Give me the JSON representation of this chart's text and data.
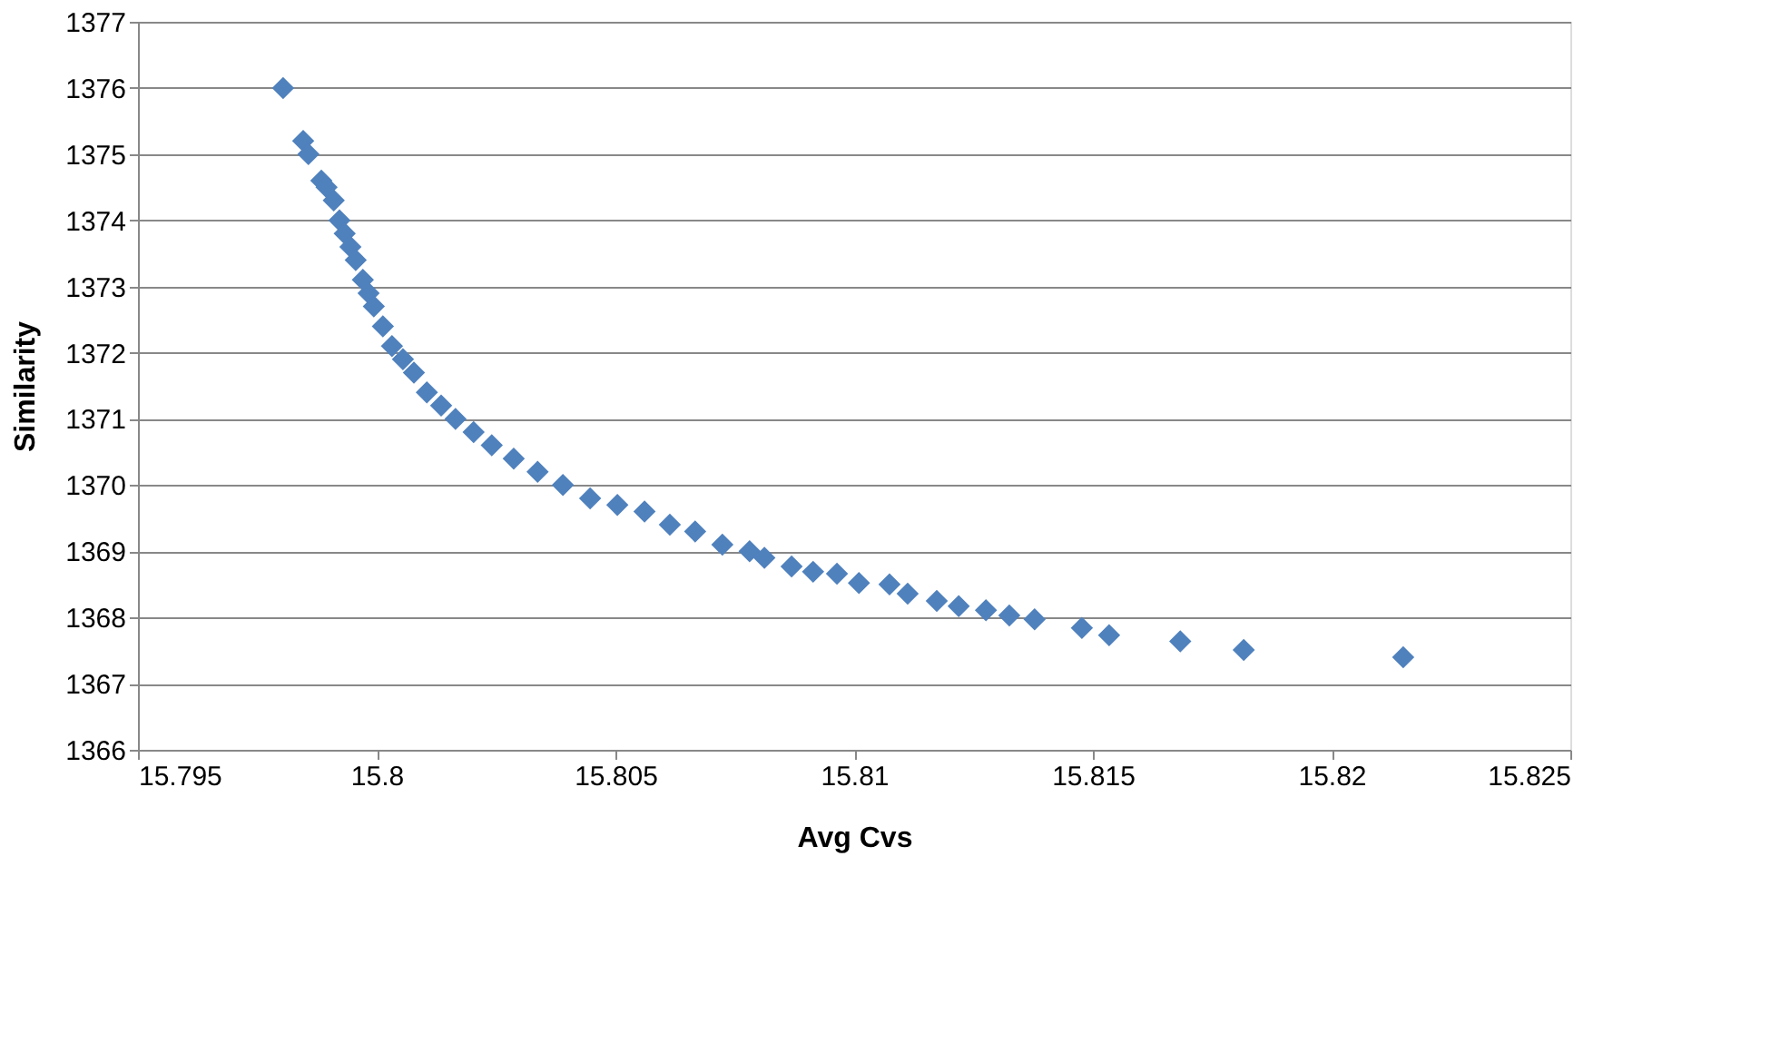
{
  "chart_data": {
    "type": "scatter",
    "xlabel": "Avg Cvs",
    "ylabel": "Similarity",
    "marker": "diamond",
    "grid": "y",
    "legend": false,
    "xlim": [
      15.795,
      15.825
    ],
    "xticks": [
      15.795,
      15.8,
      15.805,
      15.81,
      15.815,
      15.82,
      15.825
    ],
    "ylim": [
      1366,
      1377
    ],
    "yticks": [
      1366,
      1367,
      1368,
      1369,
      1370,
      1371,
      1372,
      1373,
      1374,
      1375,
      1376,
      1377
    ],
    "series": [
      {
        "color": "#4f81bd",
        "x": [
          15.79804,
          15.79846,
          15.79857,
          15.79884,
          15.79895,
          15.7991,
          15.79922,
          15.79933,
          15.79945,
          15.79956,
          15.79971,
          15.79983,
          15.79994,
          15.80013,
          15.80032,
          15.80055,
          15.80078,
          15.80105,
          15.80135,
          15.80165,
          15.80203,
          15.80241,
          15.80287,
          15.80337,
          15.8039,
          15.80447,
          15.80504,
          15.80561,
          15.80614,
          15.80667,
          15.80724,
          15.80781,
          15.80812,
          15.80869,
          15.80914,
          15.80964,
          15.8101,
          15.81074,
          15.81112,
          15.81173,
          15.81219,
          15.81276,
          15.81325,
          15.81378,
          15.81477,
          15.81534,
          15.81683,
          15.81816,
          15.8215
        ],
        "values": [
          1376.0,
          1375.2,
          1375.0,
          1374.6,
          1374.5,
          1374.3,
          1374.0,
          1373.8,
          1373.6,
          1373.4,
          1373.1,
          1372.9,
          1372.7,
          1372.4,
          1372.1,
          1371.9,
          1371.7,
          1371.4,
          1371.2,
          1371.0,
          1370.8,
          1370.6,
          1370.4,
          1370.2,
          1370.0,
          1369.8,
          1369.7,
          1369.6,
          1369.4,
          1369.3,
          1369.1,
          1369.0,
          1368.9,
          1368.77,
          1368.69,
          1368.66,
          1368.52,
          1368.5,
          1368.36,
          1368.25,
          1368.17,
          1368.11,
          1368.03,
          1367.97,
          1367.84,
          1367.73,
          1367.64,
          1367.51,
          1367.4
        ]
      }
    ]
  }
}
